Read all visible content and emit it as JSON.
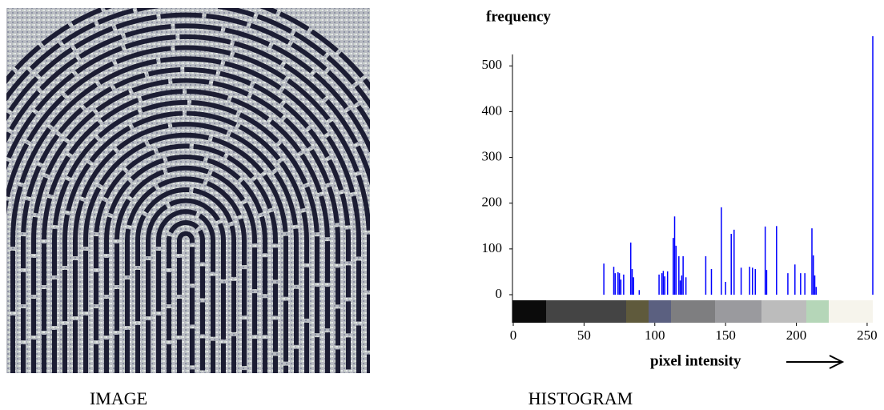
{
  "image_caption": "IMAGE",
  "chart_data": {
    "type": "bar",
    "caption": "HISTOGRAM",
    "y_label": "frequency",
    "x_label": "pixel intensity",
    "x": [
      64,
      71,
      72,
      74,
      75,
      76,
      78,
      83,
      84,
      85,
      89,
      103,
      105,
      106,
      107,
      109,
      113,
      114,
      115,
      117,
      118,
      119,
      120,
      122,
      136,
      140,
      147,
      150,
      154,
      156,
      161,
      167,
      169,
      171,
      178,
      179,
      186,
      194,
      199,
      203,
      206,
      211,
      212,
      213,
      214,
      254
    ],
    "values": [
      68,
      61,
      47,
      49,
      47,
      33,
      44,
      114,
      56,
      38,
      10,
      44,
      47,
      52,
      40,
      51,
      124,
      171,
      107,
      84,
      31,
      42,
      84,
      38,
      84,
      56,
      191,
      28,
      133,
      142,
      59,
      61,
      59,
      56,
      149,
      54,
      150,
      47,
      66,
      47,
      47,
      145,
      86,
      42,
      17,
      565
    ],
    "color": "#0000ff",
    "xlim": [
      0,
      254
    ],
    "ylim": [
      0,
      525
    ],
    "xticks": [
      0,
      50,
      100,
      150,
      200,
      250
    ],
    "yticks": [
      0,
      100,
      200,
      300,
      400,
      500
    ]
  }
}
